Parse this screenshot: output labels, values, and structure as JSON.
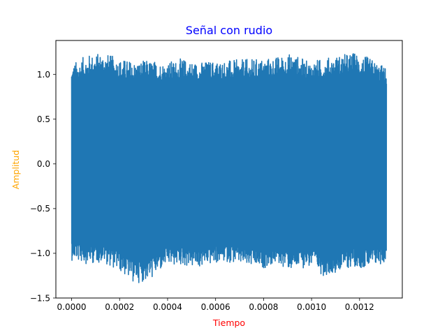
{
  "chart_data": {
    "type": "line",
    "title": "Señal con rudio",
    "xlabel": "Tiempo",
    "ylabel": "Amplitud",
    "title_color": "#0000ff",
    "xlabel_color": "#ff0000",
    "ylabel_color": "#ffa500",
    "series_color": "#1f77b4",
    "xlim": [
      -6.56e-05,
      0.0013781
    ],
    "ylim": [
      -1.5,
      1.38
    ],
    "xticks": [
      0.0,
      0.0002,
      0.0004,
      0.0006,
      0.0008,
      0.001,
      0.0012
    ],
    "xtick_labels": [
      "0.0000",
      "0.0002",
      "0.0004",
      "0.0006",
      "0.0008",
      "0.0010",
      "0.0012"
    ],
    "yticks": [
      -1.5,
      -1.0,
      -0.5,
      0.0,
      0.5,
      1.0
    ],
    "ytick_labels": [
      "−1.5",
      "−1.0",
      "−0.5",
      "0.0",
      "0.5",
      "1.0"
    ],
    "grid": false,
    "legend": "none",
    "series": [
      {
        "x": [
          0.0,
          6.56e-05,
          0.0001312,
          0.0001968,
          0.0002624,
          0.000328,
          0.0003936,
          0.0004592,
          0.0005248,
          0.0005904,
          0.000656,
          0.0007216,
          0.0007872,
          0.0008528,
          0.0009184,
          0.000984,
          0.0010496,
          0.0011152,
          0.0011808,
          0.0012464,
          0.001312
        ],
        "upper_envelope": [
          1.12,
          1.22,
          1.25,
          1.18,
          1.15,
          1.16,
          1.14,
          1.18,
          1.14,
          1.16,
          1.16,
          1.17,
          1.18,
          1.2,
          1.24,
          1.15,
          1.18,
          1.22,
          1.25,
          1.18,
          1.08
        ],
        "lower_envelope": [
          -1.08,
          -1.12,
          -1.1,
          -1.2,
          -1.34,
          -1.3,
          -1.15,
          -1.14,
          -1.17,
          -1.12,
          -1.1,
          -1.15,
          -1.18,
          -1.12,
          -1.2,
          -1.15,
          -1.25,
          -1.2,
          -1.15,
          -1.18,
          -1.1
        ]
      }
    ]
  }
}
